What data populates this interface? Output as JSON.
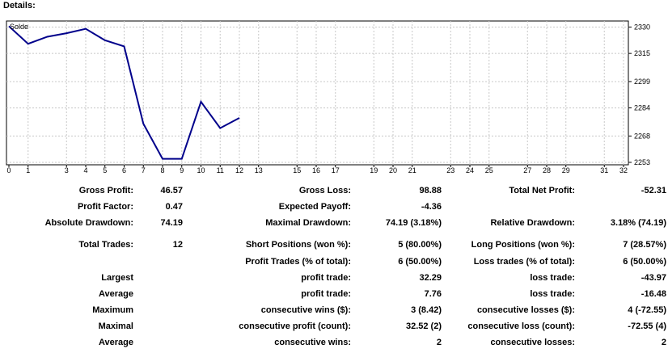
{
  "header": {
    "title": "Details:"
  },
  "chart_data": {
    "type": "line",
    "legend_label": "Solde",
    "legend_position": "top-left",
    "x": [
      0,
      1,
      2,
      3,
      4,
      5,
      6,
      7,
      8,
      9,
      10,
      11,
      12
    ],
    "series": [
      {
        "name": "Solde",
        "color": "#00008b",
        "values": [
          2330.5,
          2320.5,
          2324.5,
          2326.5,
          2329.0,
          2322.5,
          2319.0,
          2275.0,
          2255.0,
          2255.0,
          2287.5,
          2272.5,
          2278.3
        ]
      }
    ],
    "x_ticks": [
      "0",
      "1",
      "3",
      "4",
      "5",
      "6",
      "7",
      "8",
      "9",
      "10",
      "11",
      "12",
      "13",
      "15",
      "16",
      "17",
      "19",
      "20",
      "21",
      "23",
      "24",
      "25",
      "27",
      "28",
      "29",
      "31",
      "32"
    ],
    "x_tick_positions": [
      0,
      1,
      3,
      4,
      5,
      6,
      7,
      8,
      9,
      10,
      11,
      12,
      13,
      15,
      16,
      17,
      19,
      20,
      21,
      23,
      24,
      25,
      27,
      28,
      29,
      31,
      32
    ],
    "y_ticks": [
      "2330",
      "2315",
      "2299",
      "2284",
      "2268",
      "2253"
    ],
    "y_tick_values": [
      2330,
      2315,
      2299,
      2284,
      2268,
      2253
    ],
    "xlim": [
      0,
      32
    ],
    "ylim": [
      2253,
      2333
    ],
    "grid": true
  },
  "stats": {
    "rows": [
      [
        {
          "label": "Gross Profit:",
          "value": "46.57"
        },
        {
          "label": "Gross Loss:",
          "value": "98.88"
        },
        {
          "label": "Total Net Profit:",
          "value": "-52.31"
        }
      ],
      [
        {
          "label": "Profit Factor:",
          "value": "0.47"
        },
        {
          "label": "Expected Payoff:",
          "value": "-4.36"
        },
        {
          "label": "",
          "value": ""
        }
      ],
      [
        {
          "label": "Absolute Drawdown:",
          "value": "74.19"
        },
        {
          "label": "Maximal Drawdown:",
          "value": "74.19 (3.18%)"
        },
        {
          "label": "Relative Drawdown:",
          "value": "3.18% (74.19)"
        }
      ],
      [
        {
          "label": "Total Trades:",
          "value": "12"
        },
        {
          "label": "Short Positions (won %):",
          "value": "5 (80.00%)"
        },
        {
          "label": "Long Positions (won %):",
          "value": "7 (28.57%)"
        }
      ],
      [
        {
          "label": "",
          "value": ""
        },
        {
          "label": "Profit Trades (% of total):",
          "value": "6 (50.00%)"
        },
        {
          "label": "Loss trades (% of total):",
          "value": "6 (50.00%)"
        }
      ],
      [
        {
          "label": "Largest",
          "value": ""
        },
        {
          "label": "profit trade:",
          "value": "32.29"
        },
        {
          "label": "loss trade:",
          "value": "-43.97"
        }
      ],
      [
        {
          "label": "Average",
          "value": ""
        },
        {
          "label": "profit trade:",
          "value": "7.76"
        },
        {
          "label": "loss trade:",
          "value": "-16.48"
        }
      ],
      [
        {
          "label": "Maximum",
          "value": ""
        },
        {
          "label": "consecutive wins ($):",
          "value": "3 (8.42)"
        },
        {
          "label": "consecutive losses ($):",
          "value": "4 (-72.55)"
        }
      ],
      [
        {
          "label": "Maximal",
          "value": ""
        },
        {
          "label": "consecutive profit (count):",
          "value": "32.52 (2)"
        },
        {
          "label": "consecutive loss (count):",
          "value": "-72.55 (4)"
        }
      ],
      [
        {
          "label": "Average",
          "value": ""
        },
        {
          "label": "consecutive wins:",
          "value": "2"
        },
        {
          "label": "consecutive losses:",
          "value": "2"
        }
      ]
    ]
  }
}
